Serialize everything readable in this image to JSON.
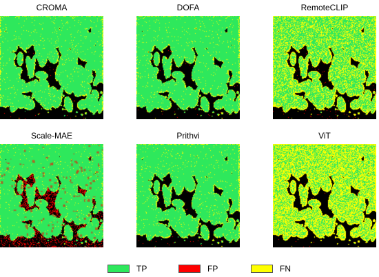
{
  "panels": [
    {
      "title": "CROMA",
      "style": "balanced"
    },
    {
      "title": "DOFA",
      "style": "balanced"
    },
    {
      "title": "RemoteCLIP",
      "style": "fn_heavy"
    },
    {
      "title": "Scale-MAE",
      "style": "fp_heavy"
    },
    {
      "title": "Prithvi",
      "style": "balanced"
    },
    {
      "title": "ViT",
      "style": "fn_very_heavy"
    }
  ],
  "legend": [
    {
      "label": "TP",
      "color": "#2ee85c"
    },
    {
      "label": "FP",
      "color": "#ff0000"
    },
    {
      "label": "FN",
      "color": "#ffff00"
    }
  ],
  "background_color": "#000000"
}
